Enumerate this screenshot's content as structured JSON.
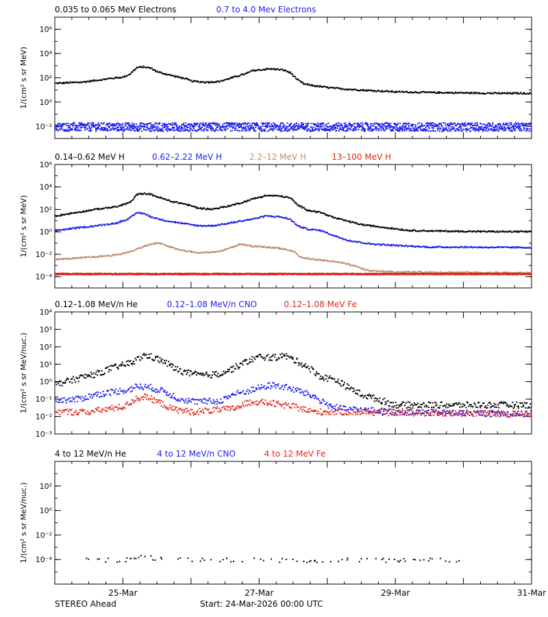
{
  "colors": {
    "black": "#000000",
    "blue": "#1c1cf0",
    "tan": "#c08a70",
    "red": "#e0261b"
  },
  "chart_data": [
    {
      "type": "scatter",
      "yscale": "log",
      "ylabel": "1/(cm² s sr MeV)",
      "ylim": [
        0.001,
        10000000
      ],
      "yticks": [
        {
          "value": 0.01,
          "label": "10⁻²"
        },
        {
          "value": 1,
          "label": "10⁰"
        },
        {
          "value": 100,
          "label": "10²"
        },
        {
          "value": 10000,
          "label": "10⁴"
        },
        {
          "value": 1000000,
          "label": "10⁶"
        }
      ],
      "series": [
        {
          "name": "0.035 to 0.065 MeV Electrons",
          "color": "black",
          "points": [
            [
              0,
              40
            ],
            [
              0.2,
              45
            ],
            [
              0.4,
              50
            ],
            [
              0.6,
              70
            ],
            [
              0.8,
              100
            ],
            [
              1.0,
              130
            ],
            [
              1.1,
              250
            ],
            [
              1.2,
              800
            ],
            [
              1.3,
              900
            ],
            [
              1.4,
              700
            ],
            [
              1.5,
              350
            ],
            [
              1.6,
              250
            ],
            [
              1.7,
              180
            ],
            [
              1.8,
              130
            ],
            [
              1.9,
              100
            ],
            [
              2.0,
              60
            ],
            [
              2.2,
              50
            ],
            [
              2.4,
              55
            ],
            [
              2.6,
              120
            ],
            [
              2.8,
              250
            ],
            [
              2.9,
              450
            ],
            [
              3.0,
              500
            ],
            [
              3.1,
              600
            ],
            [
              3.2,
              600
            ],
            [
              3.35,
              500
            ],
            [
              3.45,
              300
            ],
            [
              3.55,
              80
            ],
            [
              3.65,
              35
            ],
            [
              3.8,
              25
            ],
            [
              4.0,
              18
            ],
            [
              4.2,
              14
            ],
            [
              4.5,
              11
            ],
            [
              5.0,
              8
            ],
            [
              5.5,
              7
            ],
            [
              6.0,
              6.5
            ],
            [
              6.5,
              6
            ],
            [
              7.0,
              6
            ]
          ]
        },
        {
          "name": "0.7 to 4.0 Mev Electrons",
          "color": "blue",
          "points": [
            [
              0,
              0.01
            ],
            [
              1.0,
              0.01
            ],
            [
              2.0,
              0.01
            ],
            [
              3.0,
              0.01
            ],
            [
              4.0,
              0.01
            ],
            [
              5.0,
              0.01
            ],
            [
              6.0,
              0.01
            ],
            [
              7.0,
              0.01
            ]
          ]
        }
      ]
    },
    {
      "type": "scatter",
      "yscale": "log",
      "ylabel": "1/(cm² s sr MeV)",
      "ylim": [
        1e-05,
        1000000
      ],
      "yticks": [
        {
          "value": 0.0001,
          "label": "10⁻⁴"
        },
        {
          "value": 0.01,
          "label": "10⁻²"
        },
        {
          "value": 1,
          "label": "10⁰"
        },
        {
          "value": 100,
          "label": "10²"
        },
        {
          "value": 10000,
          "label": "10⁴"
        },
        {
          "value": 1000000,
          "label": "10⁶"
        }
      ],
      "series": [
        {
          "name": "0.14–0.62 MeV H",
          "color": "black",
          "points": [
            [
              0,
              30
            ],
            [
              0.3,
              60
            ],
            [
              0.6,
              120
            ],
            [
              0.9,
              200
            ],
            [
              1.1,
              500
            ],
            [
              1.2,
              2500
            ],
            [
              1.3,
              3000
            ],
            [
              1.4,
              2500
            ],
            [
              1.5,
              1500
            ],
            [
              1.7,
              600
            ],
            [
              1.9,
              350
            ],
            [
              2.1,
              150
            ],
            [
              2.3,
              120
            ],
            [
              2.5,
              200
            ],
            [
              2.7,
              400
            ],
            [
              2.9,
              1000
            ],
            [
              3.1,
              2000
            ],
            [
              3.3,
              1800
            ],
            [
              3.45,
              1200
            ],
            [
              3.55,
              300
            ],
            [
              3.7,
              100
            ],
            [
              3.9,
              60
            ],
            [
              4.1,
              20
            ],
            [
              4.3,
              10
            ],
            [
              4.5,
              5
            ],
            [
              4.8,
              3
            ],
            [
              5.2,
              1.5
            ],
            [
              5.8,
              1.3
            ],
            [
              6.5,
              1.2
            ],
            [
              7.0,
              1.2
            ]
          ]
        },
        {
          "name": "0.62–2.22 MeV H",
          "color": "blue",
          "points": [
            [
              0,
              1.5
            ],
            [
              0.3,
              2.5
            ],
            [
              0.6,
              4
            ],
            [
              0.9,
              7
            ],
            [
              1.1,
              20
            ],
            [
              1.2,
              60
            ],
            [
              1.3,
              50
            ],
            [
              1.4,
              25
            ],
            [
              1.6,
              12
            ],
            [
              1.9,
              6
            ],
            [
              2.1,
              4
            ],
            [
              2.3,
              4
            ],
            [
              2.5,
              6
            ],
            [
              2.7,
              10
            ],
            [
              2.9,
              16
            ],
            [
              3.1,
              30
            ],
            [
              3.3,
              25
            ],
            [
              3.45,
              15
            ],
            [
              3.55,
              4
            ],
            [
              3.7,
              2
            ],
            [
              3.9,
              1.5
            ],
            [
              4.1,
              0.5
            ],
            [
              4.3,
              0.2
            ],
            [
              4.6,
              0.1
            ],
            [
              5.0,
              0.07
            ],
            [
              5.5,
              0.05
            ],
            [
              6.0,
              0.05
            ],
            [
              7.0,
              0.045
            ]
          ]
        },
        {
          "name": "2.2–12 MeV H",
          "color": "tan",
          "points": [
            [
              0,
              0.004
            ],
            [
              0.3,
              0.005
            ],
            [
              0.6,
              0.007
            ],
            [
              0.9,
              0.01
            ],
            [
              1.1,
              0.02
            ],
            [
              1.3,
              0.06
            ],
            [
              1.5,
              0.12
            ],
            [
              1.6,
              0.08
            ],
            [
              1.8,
              0.03
            ],
            [
              2.1,
              0.015
            ],
            [
              2.4,
              0.02
            ],
            [
              2.6,
              0.05
            ],
            [
              2.7,
              0.09
            ],
            [
              2.9,
              0.06
            ],
            [
              3.1,
              0.05
            ],
            [
              3.3,
              0.04
            ],
            [
              3.5,
              0.02
            ],
            [
              3.6,
              0.006
            ],
            [
              3.8,
              0.004
            ],
            [
              4.0,
              0.003
            ],
            [
              4.2,
              0.002
            ],
            [
              4.4,
              0.001
            ],
            [
              4.6,
              0.0004
            ],
            [
              5.0,
              0.0003
            ],
            [
              7.0,
              0.00025
            ]
          ]
        },
        {
          "name": "13–100 MeV H",
          "color": "red",
          "points": [
            [
              0,
              0.0002
            ],
            [
              7.0,
              0.0002
            ]
          ]
        }
      ]
    },
    {
      "type": "scatter",
      "yscale": "log",
      "ylabel": "1/(cm² s sr MeV/nuc.)",
      "ylim": [
        0.001,
        10000
      ],
      "yticks": [
        {
          "value": 0.001,
          "label": "10⁻³"
        },
        {
          "value": 0.01,
          "label": "10⁻²"
        },
        {
          "value": 0.1,
          "label": "10⁻¹"
        },
        {
          "value": 1,
          "label": "10⁰"
        },
        {
          "value": 10,
          "label": "10¹"
        },
        {
          "value": 100,
          "label": "10²"
        },
        {
          "value": 1000,
          "label": "10³"
        },
        {
          "value": 10000,
          "label": "10⁴"
        }
      ],
      "series": [
        {
          "name": "0.12–1.08 MeV/n He",
          "color": "black",
          "points": [
            [
              0,
              0.8
            ],
            [
              0.2,
              1.2
            ],
            [
              0.4,
              2
            ],
            [
              0.6,
              3
            ],
            [
              0.8,
              6
            ],
            [
              1.0,
              10
            ],
            [
              1.15,
              15
            ],
            [
              1.3,
              35
            ],
            [
              1.4,
              30
            ],
            [
              1.6,
              15
            ],
            [
              1.8,
              5
            ],
            [
              2.0,
              3
            ],
            [
              2.2,
              2.5
            ],
            [
              2.4,
              3
            ],
            [
              2.6,
              6
            ],
            [
              2.8,
              15
            ],
            [
              3.0,
              30
            ],
            [
              3.2,
              25
            ],
            [
              3.35,
              35
            ],
            [
              3.5,
              20
            ],
            [
              3.7,
              8
            ],
            [
              3.9,
              2
            ],
            [
              4.1,
              1.5
            ],
            [
              4.3,
              0.5
            ],
            [
              4.5,
              0.2
            ],
            [
              5.0,
              0.05
            ],
            [
              6.0,
              0.05
            ],
            [
              7.0,
              0.05
            ]
          ]
        },
        {
          "name": "0.12–1.08 MeV/n CNO",
          "color": "blue",
          "points": [
            [
              0,
              0.1
            ],
            [
              0.3,
              0.1
            ],
            [
              0.6,
              0.2
            ],
            [
              0.9,
              0.3
            ],
            [
              1.1,
              0.4
            ],
            [
              1.2,
              0.6
            ],
            [
              1.4,
              0.5
            ],
            [
              1.6,
              0.3
            ],
            [
              1.8,
              0.12
            ],
            [
              2.0,
              0.08
            ],
            [
              2.4,
              0.08
            ],
            [
              2.6,
              0.2
            ],
            [
              2.8,
              0.3
            ],
            [
              3.0,
              0.5
            ],
            [
              3.2,
              0.7
            ],
            [
              3.4,
              0.5
            ],
            [
              3.6,
              0.3
            ],
            [
              3.8,
              0.15
            ],
            [
              4.0,
              0.05
            ],
            [
              4.2,
              0.03
            ],
            [
              5.0,
              0.02
            ],
            [
              7.0,
              0.015
            ]
          ]
        },
        {
          "name": "0.12–1.08 MeV Fe",
          "color": "red",
          "points": [
            [
              0,
              0.02
            ],
            [
              0.5,
              0.02
            ],
            [
              1.0,
              0.04
            ],
            [
              1.2,
              0.12
            ],
            [
              1.3,
              0.15
            ],
            [
              1.5,
              0.08
            ],
            [
              1.7,
              0.03
            ],
            [
              2.0,
              0.02
            ],
            [
              2.6,
              0.03
            ],
            [
              2.9,
              0.08
            ],
            [
              3.2,
              0.06
            ],
            [
              3.5,
              0.04
            ],
            [
              3.8,
              0.02
            ],
            [
              4.2,
              0.02
            ],
            [
              7.0,
              0.015
            ]
          ]
        }
      ]
    },
    {
      "type": "scatter",
      "yscale": "log",
      "ylabel": "1/(cm² s sr MeV/nuc.)",
      "ylim": [
        1e-06,
        10000
      ],
      "yticks": [
        {
          "value": 0.0001,
          "label": "10⁻⁴"
        },
        {
          "value": 0.01,
          "label": "10⁻²"
        },
        {
          "value": 1,
          "label": "10⁰"
        },
        {
          "value": 100,
          "label": "10²"
        }
      ],
      "series": [
        {
          "name": "4 to 12 MeV/n He",
          "color": "black",
          "points": [
            [
              0.4,
              0.0001
            ],
            [
              1.0,
              0.0001
            ],
            [
              1.1,
              0.00015
            ],
            [
              1.3,
              0.00025
            ],
            [
              1.5,
              0.00012
            ],
            [
              2.0,
              0.0001
            ],
            [
              3.0,
              0.0001
            ],
            [
              4.0,
              0.0001
            ],
            [
              5.0,
              0.0001
            ],
            [
              6.0,
              0.0001
            ]
          ]
        },
        {
          "name": "4 to 12 MeV/n CNO",
          "color": "blue",
          "points": []
        },
        {
          "name": "4 to 12 MeV Fe",
          "color": "red",
          "points": []
        }
      ]
    }
  ],
  "x_axis": {
    "unit": "days since start",
    "range": [
      0,
      7
    ],
    "ticks": [
      {
        "value": 1,
        "label": "25-Mar"
      },
      {
        "value": 3,
        "label": "27-Mar"
      },
      {
        "value": 5,
        "label": "29-Mar"
      },
      {
        "value": 7,
        "label": "31-Mar"
      }
    ]
  },
  "footer": {
    "spacecraft": "STEREO Ahead",
    "start": "Start: 24-Mar-2026 00:00 UTC"
  }
}
